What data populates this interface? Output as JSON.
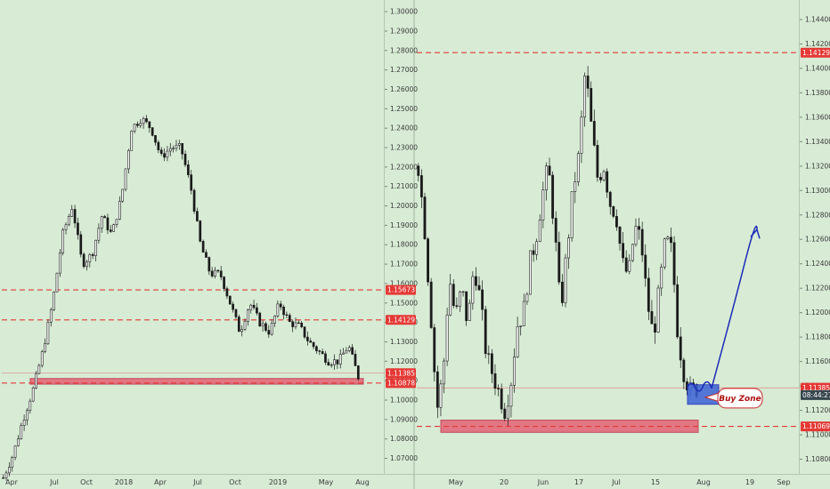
{
  "colors": {
    "background": "#d7ebd5",
    "candle_up": "#ffffff",
    "candle_down": "#1a1a1a",
    "level_line": "#e53935",
    "zone_fill": "#e46b7b",
    "buy_box": "#3a62d6",
    "arrow": "#1c2bb8",
    "badge": "#e53935",
    "badge_dark": "#37474f"
  },
  "chart_data": [
    {
      "type": "candlestick",
      "title": "",
      "x_tick_labels": [
        "Apr",
        "Jul",
        "Oct",
        "2018",
        "Apr",
        "Jul",
        "Oct",
        "2019",
        "May",
        "Aug"
      ],
      "y_ticks": [
        1.3,
        1.29,
        1.28,
        1.27,
        1.26,
        1.25,
        1.24,
        1.23,
        1.22,
        1.21,
        1.2,
        1.19,
        1.18,
        1.17,
        1.16,
        1.15,
        1.14,
        1.13,
        1.12,
        1.11,
        1.1,
        1.09,
        1.08,
        1.07
      ],
      "y_tick_labels": [
        "1.30000",
        "1.29000",
        "1.28000",
        "1.27000",
        "1.26000",
        "1.25000",
        "1.24000",
        "1.23000",
        "1.22000",
        "1.21000",
        "1.20000",
        "1.19000",
        "1.18000",
        "1.17000",
        "1.16000",
        "1.15000",
        "1.14000",
        "1.13000",
        "1.12000",
        "1.11000",
        "1.10000",
        "1.09000",
        "1.08000",
        "1.07000"
      ],
      "ylim": [
        1.062,
        1.306
      ],
      "path_points": [
        1.06,
        1.072,
        1.09,
        1.105,
        1.125,
        1.15,
        1.185,
        1.2,
        1.17,
        1.175,
        1.195,
        1.185,
        1.205,
        1.24,
        1.245,
        1.24,
        1.225,
        1.23,
        1.23,
        1.21,
        1.18,
        1.165,
        1.165,
        1.15,
        1.135,
        1.15,
        1.14,
        1.135,
        1.15,
        1.14,
        1.138,
        1.13,
        1.125,
        1.12,
        1.12,
        1.128,
        1.112
      ],
      "horizontal_levels": [
        1.15673,
        1.14129,
        1.10878
      ],
      "support_zone": [
        1.1082,
        1.1111
      ],
      "price_badges": [
        {
          "label": "1.15673",
          "value": 1.15673,
          "color": "#e53935"
        },
        {
          "label": "1.14129",
          "value": 1.14129,
          "color": "#e53935"
        },
        {
          "label": "1.11385",
          "value": 1.11385,
          "color": "#e53935"
        },
        {
          "label": "1.10878",
          "value": 1.10878,
          "color": "#e53935"
        }
      ]
    },
    {
      "type": "candlestick",
      "title": "",
      "x_tick_labels": [
        "May",
        "20",
        "Jun",
        "17",
        "Jul",
        "15",
        "Aug",
        "19",
        "Sep"
      ],
      "y_ticks": [
        1.144,
        1.142,
        1.14,
        1.138,
        1.136,
        1.134,
        1.132,
        1.13,
        1.128,
        1.126,
        1.124,
        1.122,
        1.12,
        1.118,
        1.116,
        1.114,
        1.112,
        1.11,
        1.108
      ],
      "y_tick_labels": [
        "1.14400",
        "1.14200",
        "1.14000",
        "1.13800",
        "1.13600",
        "1.13400",
        "1.13200",
        "1.13000",
        "1.12800",
        "1.12600",
        "1.12400",
        "1.12200",
        "1.12000",
        "1.11800",
        "1.11600",
        "1.11400",
        "1.11200",
        "1.11000",
        "1.10800"
      ],
      "ylim": [
        1.1068,
        1.1456
      ],
      "path_points": [
        1.132,
        1.127,
        1.12,
        1.112,
        1.115,
        1.123,
        1.1195,
        1.122,
        1.119,
        1.124,
        1.121,
        1.1165,
        1.115,
        1.1135,
        1.112,
        1.1145,
        1.119,
        1.12,
        1.124,
        1.126,
        1.1295,
        1.132,
        1.127,
        1.12,
        1.125,
        1.13,
        1.133,
        1.14,
        1.135,
        1.131,
        1.132,
        1.129,
        1.128,
        1.124,
        1.123,
        1.127,
        1.126,
        1.121,
        1.118,
        1.122,
        1.126,
        1.125,
        1.118,
        1.115,
        1.1135,
        1.1138
      ],
      "horizontal_levels": [
        1.14129,
        1.11069
      ],
      "support_zone": [
        1.1102,
        1.1112
      ],
      "buy_zone": [
        1.1125,
        1.1141
      ],
      "buy_zone_label": "Buy Zone",
      "arrow_target": 1.1268,
      "price_badges": [
        {
          "label": "1.14129",
          "value": 1.14129,
          "color": "#e53935"
        },
        {
          "label": "1.11385",
          "value": 1.11385,
          "color": "#e53935"
        },
        {
          "label": "08:44:27",
          "value": 1.11325,
          "color": "#37474f"
        },
        {
          "label": "1.11069",
          "value": 1.11069,
          "color": "#e53935"
        }
      ]
    }
  ]
}
